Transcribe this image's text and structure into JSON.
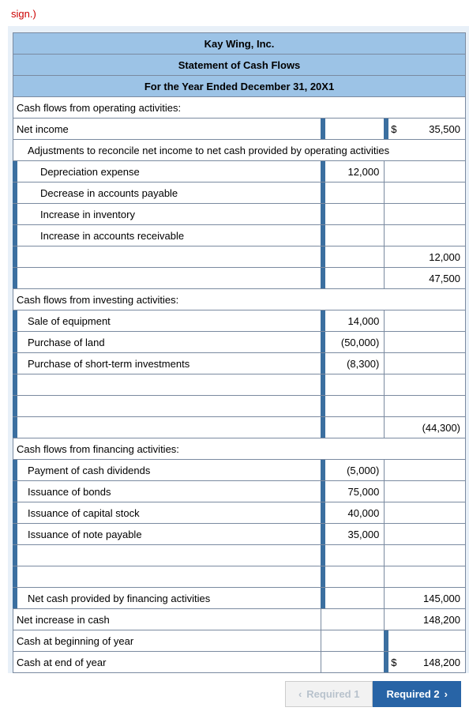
{
  "fragment": "sign.)",
  "header": {
    "company": "Kay Wing, Inc.",
    "title": "Statement of Cash Flows",
    "period": "For the Year Ended December 31, 20X1"
  },
  "sections": {
    "op_header": "Cash flows from operating activities:",
    "net_income_label": "Net income",
    "net_income_val": "35,500",
    "adjust_label": "Adjustments to reconcile net income to net cash provided by operating activities",
    "dep_label": "Depreciation expense",
    "dep_val": "12,000",
    "dec_ap_label": "Decrease in accounts payable",
    "inc_inv_label": "Increase in inventory",
    "inc_ar_label": "Increase in accounts receivable",
    "op_sub": "12,000",
    "op_total": "47,500",
    "inv_header": "Cash flows from investing activities:",
    "sale_eq_label": "Sale of equipment",
    "sale_eq_val": "14,000",
    "purch_land_label": "Purchase of land",
    "purch_land_val": "(50,000)",
    "purch_sti_label": "Purchase of short-term investments",
    "purch_sti_val": "(8,300)",
    "inv_total": "(44,300)",
    "fin_header": "Cash flows from financing activities:",
    "pay_div_label": "Payment of cash dividends",
    "pay_div_val": "(5,000)",
    "iss_bonds_label": "Issuance of bonds",
    "iss_bonds_val": "75,000",
    "iss_stock_label": "Issuance of capital stock",
    "iss_stock_val": "40,000",
    "iss_note_label": "Issuance of note payable",
    "iss_note_val": "35,000",
    "fin_net_label": "Net cash provided by financing activities",
    "fin_net_val": "145,000",
    "net_inc_cash_label": "Net increase in cash",
    "net_inc_cash_val": "148,200",
    "beg_label": "Cash at beginning of year",
    "end_label": "Cash at end of year",
    "end_val": "148,200"
  },
  "nav": {
    "req1": "Required 1",
    "req2": "Required 2"
  },
  "style": {
    "header_bg": "#9cc3e6",
    "border": "#7a8aa0",
    "tick": "#3b6fa0",
    "active_btn": "#2864a6"
  }
}
